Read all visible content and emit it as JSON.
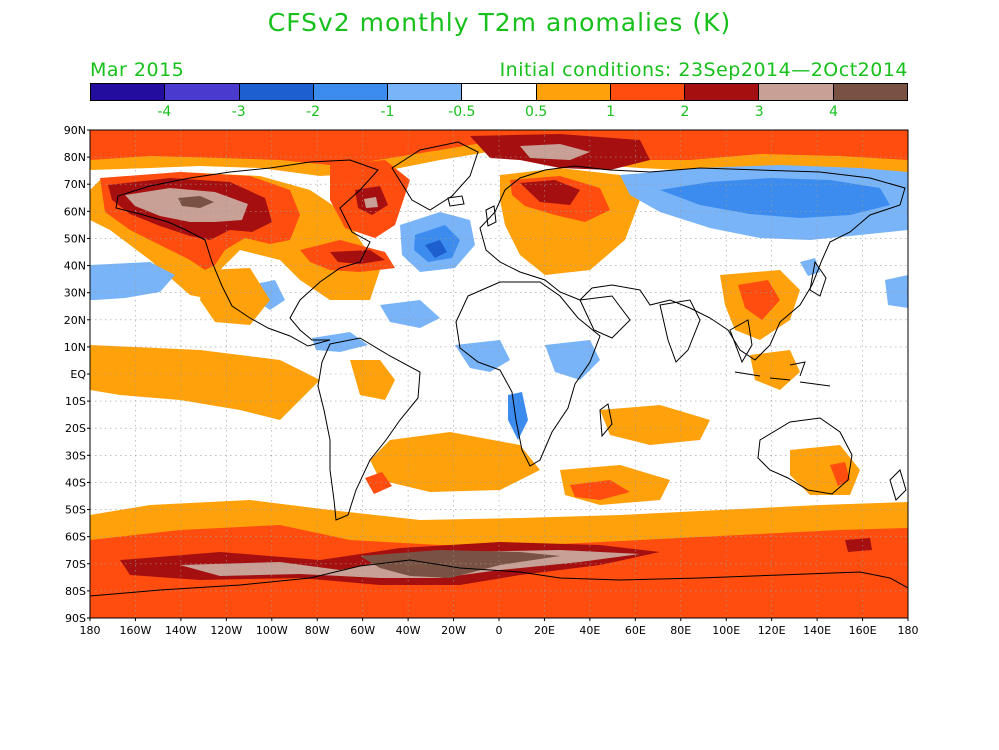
{
  "title": "CFSv2 monthly T2m anomalies (K)",
  "valid_month": "Mar 2015",
  "initial_conditions": "Initial conditions: 23Sep2014—2Oct2014",
  "colorbar": {
    "colors": [
      "#230d9e",
      "#4a3acd",
      "#1e5fcf",
      "#3c8cf0",
      "#78b4f7",
      "#ffffff",
      "#ffa10a",
      "#ff4d10",
      "#a50f0f",
      "#c8a095",
      "#7a5244"
    ],
    "tick_labels": [
      "-4",
      "-3",
      "-2",
      "-1",
      "-0.5",
      "0.5",
      "1",
      "2",
      "3",
      "4"
    ]
  },
  "map": {
    "lat_labels": [
      "90N",
      "80N",
      "70N",
      "60N",
      "50N",
      "40N",
      "30N",
      "20N",
      "10N",
      "EQ",
      "10S",
      "20S",
      "30S",
      "40S",
      "50S",
      "60S",
      "70S",
      "80S",
      "90S"
    ],
    "lon_labels": [
      "180",
      "160W",
      "140W",
      "120W",
      "100W",
      "80W",
      "60W",
      "40W",
      "20W",
      "0",
      "20E",
      "40E",
      "60E",
      "80E",
      "100E",
      "120E",
      "140E",
      "160E",
      "180"
    ]
  }
}
